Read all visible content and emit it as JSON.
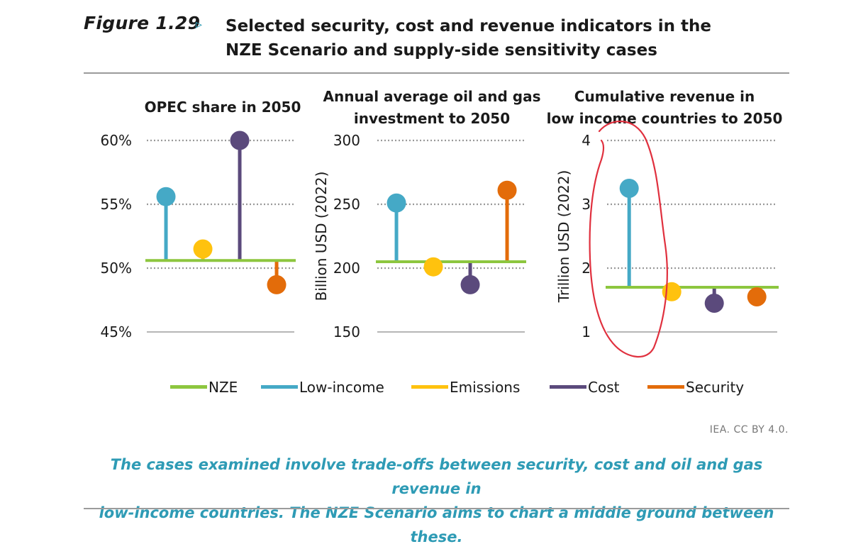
{
  "figure": {
    "label": "Figure 1.29",
    "arrow": "▹",
    "title_line1": "Selected security, cost and revenue indicators in the",
    "title_line2": "NZE Scenario and supply-side sensitivity cases"
  },
  "colors": {
    "NZE": "#8dc63f",
    "Low-income": "#45a9c6",
    "Emissions": "#ffc20e",
    "Cost": "#5b4a7c",
    "Security": "#e36c0a",
    "annotation": "#e0303e"
  },
  "legend": [
    "NZE",
    "Low-income",
    "Emissions",
    "Cost",
    "Security"
  ],
  "chart_data": [
    {
      "type": "lollipop",
      "title_lines": [
        "OPEC share in 2050"
      ],
      "ylabel": "",
      "ylim": [
        45,
        60
      ],
      "yticks": [
        45,
        50,
        55,
        60
      ],
      "ytick_labels": [
        "45%",
        "50%",
        "55%",
        "60%"
      ],
      "baseline": {
        "name": "NZE",
        "value": 50.6
      },
      "series": [
        {
          "name": "Low-income",
          "value": 55.6
        },
        {
          "name": "Emissions",
          "value": 51.5
        },
        {
          "name": "Cost",
          "value": 60.0
        },
        {
          "name": "Security",
          "value": 48.7
        }
      ]
    },
    {
      "type": "lollipop",
      "title_lines": [
        "Annual average oil and gas",
        "investment to 2050"
      ],
      "ylabel": "Billion USD (2022)",
      "ylim": [
        150,
        300
      ],
      "yticks": [
        150,
        200,
        250,
        300
      ],
      "ytick_labels": [
        "150",
        "200",
        "250",
        "300"
      ],
      "baseline": {
        "name": "NZE",
        "value": 205
      },
      "series": [
        {
          "name": "Low-income",
          "value": 251
        },
        {
          "name": "Emissions",
          "value": 201
        },
        {
          "name": "Cost",
          "value": 187
        },
        {
          "name": "Security",
          "value": 261
        }
      ]
    },
    {
      "type": "lollipop",
      "title_lines": [
        "Cumulative revenue in",
        "low income countries to 2050"
      ],
      "ylabel": "Trillion USD (2022)",
      "ylim": [
        1,
        4
      ],
      "yticks": [
        1,
        2,
        3,
        4
      ],
      "ytick_labels": [
        "1",
        "2",
        "3",
        "4"
      ],
      "baseline": {
        "name": "NZE",
        "value": 1.7
      },
      "series": [
        {
          "name": "Low-income",
          "value": 3.25
        },
        {
          "name": "Emissions",
          "value": 1.63
        },
        {
          "name": "Cost",
          "value": 1.45
        },
        {
          "name": "Security",
          "value": 1.55
        }
      ]
    }
  ],
  "credit": "IEA. CC BY 4.0.",
  "caption_line1": "The cases examined involve trade-offs between security, cost and oil and gas revenue in",
  "caption_line2": "low-income countries. The NZE Scenario aims to chart a middle ground between these."
}
